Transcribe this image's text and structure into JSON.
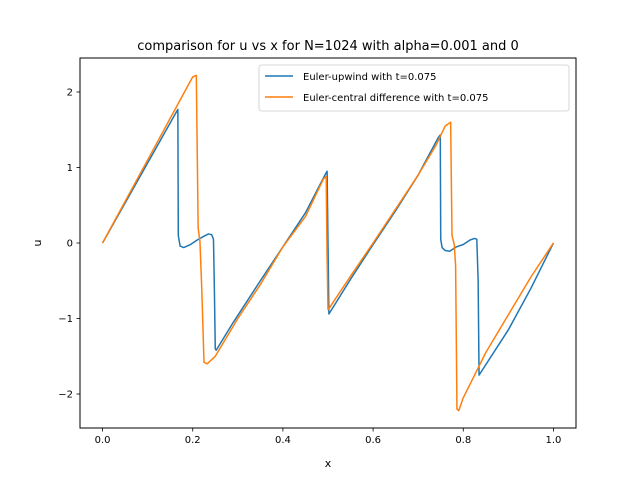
{
  "chart_data": {
    "type": "line",
    "title": "comparison for u vs x for N=1024 with alpha=0.001 and 0",
    "xlabel": "x",
    "ylabel": "u",
    "xlim": [
      -0.05,
      1.05
    ],
    "ylim": [
      -2.45,
      2.45
    ],
    "xticks": [
      0.0,
      0.2,
      0.4,
      0.6,
      0.8,
      1.0
    ],
    "xtick_labels": [
      "0.0",
      "0.2",
      "0.4",
      "0.6",
      "0.8",
      "1.0"
    ],
    "yticks": [
      -2,
      -1,
      0,
      1,
      2
    ],
    "ytick_labels": [
      "−2",
      "−1",
      "0",
      "1",
      "2"
    ],
    "grid": false,
    "legend_position": "top-right",
    "series": [
      {
        "name": "Euler-upwind with t=0.075",
        "color": "#1f77b4",
        "x": [
          0.0,
          0.167,
          0.168,
          0.172,
          0.18,
          0.195,
          0.21,
          0.225,
          0.235,
          0.242,
          0.246,
          0.248,
          0.25,
          0.252,
          0.29,
          0.35,
          0.4,
          0.45,
          0.495,
          0.498,
          0.502,
          0.55,
          0.6,
          0.65,
          0.7,
          0.745,
          0.749,
          0.75,
          0.753,
          0.76,
          0.77,
          0.785,
          0.8,
          0.815,
          0.825,
          0.83,
          0.833,
          0.835,
          0.9,
          0.95,
          1.0
        ],
        "y": [
          0.0,
          1.77,
          0.1,
          -0.04,
          -0.06,
          -0.02,
          0.04,
          0.09,
          0.12,
          0.11,
          0.05,
          -0.6,
          -1.4,
          -1.42,
          -1.05,
          -0.5,
          -0.05,
          0.4,
          0.92,
          0.95,
          -0.94,
          -0.48,
          -0.02,
          0.43,
          0.9,
          1.4,
          1.43,
          0.05,
          -0.06,
          -0.1,
          -0.11,
          -0.05,
          -0.02,
          0.04,
          0.06,
          0.05,
          -0.5,
          -1.75,
          -1.15,
          -0.6,
          0.0
        ]
      },
      {
        "name": "Euler-central difference with t=0.075",
        "color": "#ff7f0e",
        "x": [
          0.0,
          0.05,
          0.1,
          0.15,
          0.2,
          0.208,
          0.212,
          0.216,
          0.22,
          0.225,
          0.232,
          0.25,
          0.3,
          0.35,
          0.4,
          0.45,
          0.49,
          0.496,
          0.498,
          0.5,
          0.503,
          0.55,
          0.6,
          0.65,
          0.7,
          0.74,
          0.76,
          0.772,
          0.775,
          0.78,
          0.783,
          0.786,
          0.79,
          0.8,
          0.85,
          0.9,
          0.95,
          1.0
        ],
        "y": [
          0.0,
          0.55,
          1.1,
          1.65,
          2.2,
          2.22,
          0.2,
          0.02,
          -0.6,
          -1.58,
          -1.6,
          -1.5,
          -1.0,
          -0.55,
          -0.05,
          0.35,
          0.85,
          0.88,
          -0.2,
          -0.88,
          -0.86,
          -0.44,
          0.0,
          0.45,
          0.9,
          1.3,
          1.55,
          1.6,
          0.1,
          -0.02,
          -0.3,
          -2.2,
          -2.22,
          -2.05,
          -1.45,
          -0.95,
          -0.45,
          0.0
        ]
      }
    ]
  }
}
